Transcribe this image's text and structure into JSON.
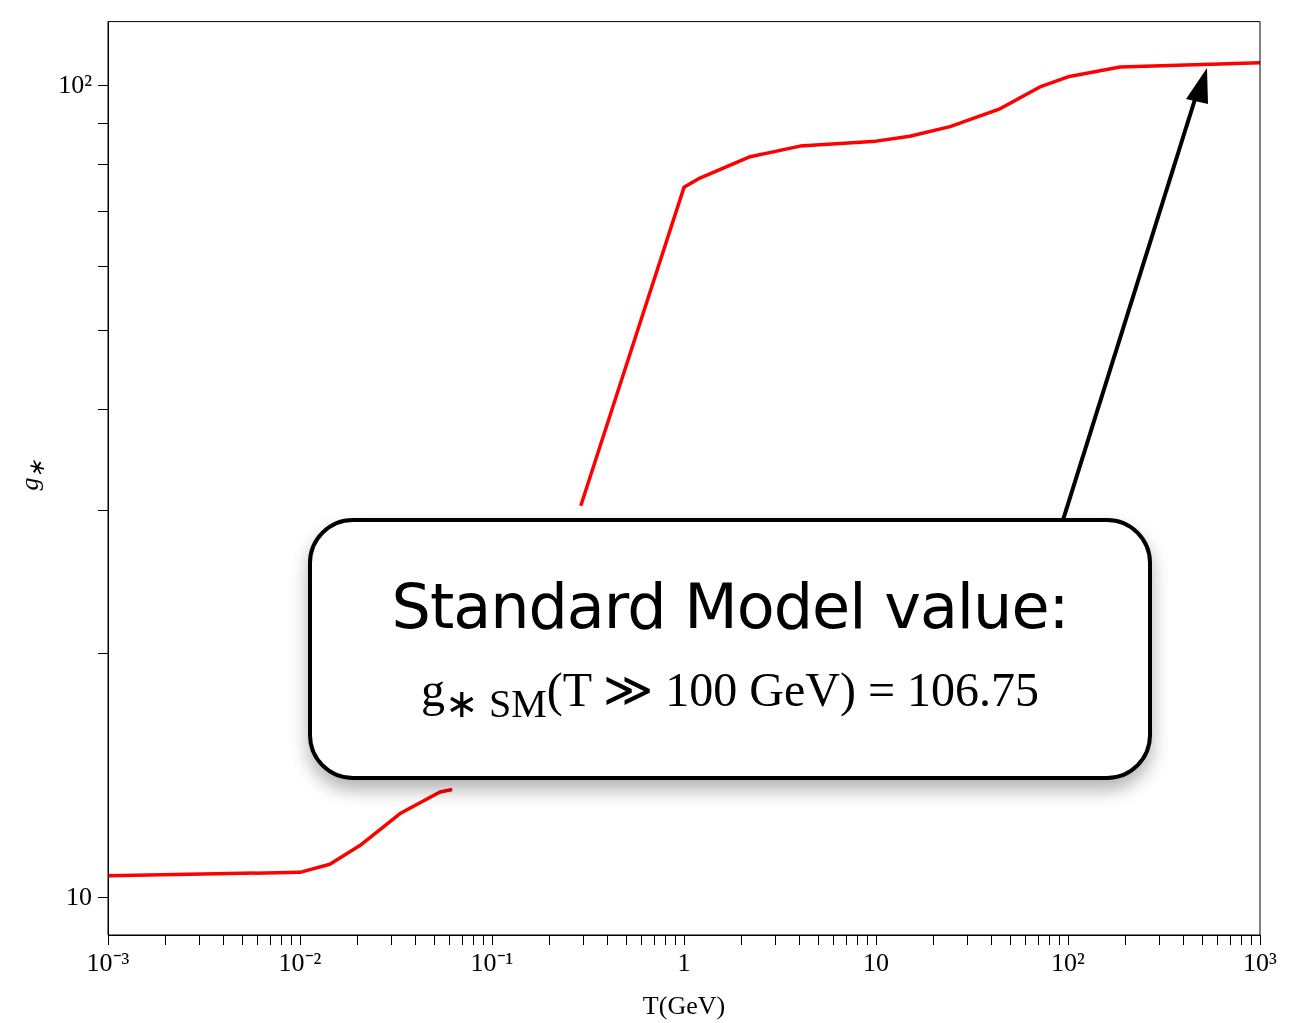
{
  "chart_data": {
    "type": "line",
    "xlabel": "T(GeV)",
    "ylabel": "g$_{∗}$",
    "log": "xy",
    "grid": false,
    "legend": false,
    "marker": "none",
    "line_style": "solid",
    "xlim": [
      0.001,
      1000
    ],
    "ylim": [
      9,
      120
    ],
    "xticks": [
      {
        "value": 0.001,
        "label": "10⁻³"
      },
      {
        "value": 0.002,
        "label": null
      },
      {
        "value": 0.003,
        "label": null
      },
      {
        "value": 0.004,
        "label": null
      },
      {
        "value": 0.005,
        "label": null
      },
      {
        "value": 0.006,
        "label": null
      },
      {
        "value": 0.007,
        "label": null
      },
      {
        "value": 0.008,
        "label": null
      },
      {
        "value": 0.009,
        "label": null
      },
      {
        "value": 0.01,
        "label": "10⁻²"
      },
      {
        "value": 0.02,
        "label": null
      },
      {
        "value": 0.03,
        "label": null
      },
      {
        "value": 0.04,
        "label": null
      },
      {
        "value": 0.05,
        "label": null
      },
      {
        "value": 0.06,
        "label": null
      },
      {
        "value": 0.07,
        "label": null
      },
      {
        "value": 0.08,
        "label": null
      },
      {
        "value": 0.09,
        "label": null
      },
      {
        "value": 0.1,
        "label": "10⁻¹"
      },
      {
        "value": 0.2,
        "label": null
      },
      {
        "value": 0.3,
        "label": null
      },
      {
        "value": 0.4,
        "label": null
      },
      {
        "value": 0.5,
        "label": null
      },
      {
        "value": 0.6,
        "label": null
      },
      {
        "value": 0.7,
        "label": null
      },
      {
        "value": 0.8,
        "label": null
      },
      {
        "value": 0.9,
        "label": null
      },
      1,
      {
        "value": 2,
        "label": null
      },
      {
        "value": 3,
        "label": null
      },
      {
        "value": 4,
        "label": null
      },
      {
        "value": 5,
        "label": null
      },
      {
        "value": 6,
        "label": null
      },
      {
        "value": 7,
        "label": null
      },
      {
        "value": 8,
        "label": null
      },
      {
        "value": 9,
        "label": null
      },
      10,
      {
        "value": 20,
        "label": null
      },
      {
        "value": 30,
        "label": null
      },
      {
        "value": 40,
        "label": null
      },
      {
        "value": 50,
        "label": null
      },
      {
        "value": 60,
        "label": null
      },
      {
        "value": 70,
        "label": null
      },
      {
        "value": 80,
        "label": null
      },
      {
        "value": 90,
        "label": null
      },
      {
        "value": 100,
        "label": "10²"
      },
      {
        "value": 200,
        "label": null
      },
      {
        "value": 300,
        "label": null
      },
      {
        "value": 400,
        "label": null
      },
      {
        "value": 500,
        "label": null
      },
      {
        "value": 600,
        "label": null
      },
      {
        "value": 700,
        "label": null
      },
      {
        "value": 800,
        "label": null
      },
      {
        "value": 900,
        "label": null
      },
      {
        "value": 1000,
        "label": "10³"
      }
    ],
    "yticks": [
      10,
      {
        "value": 20,
        "label": null
      },
      {
        "value": 30,
        "label": null
      },
      {
        "value": 40,
        "label": null
      },
      {
        "value": 50,
        "label": null
      },
      {
        "value": 60,
        "label": null
      },
      {
        "value": 70,
        "label": null
      },
      {
        "value": 80,
        "label": null
      },
      {
        "value": 90,
        "label": null
      },
      {
        "value": 100,
        "label": "10²"
      }
    ],
    "series": [
      {
        "color": "#ff0000",
        "x": [
          0.001,
          0.01,
          0.0143,
          0.0205,
          0.0332,
          0.0536,
          0.062,
          0.15,
          0.29,
          1,
          1.21,
          2.21,
          4.02,
          10,
          15,
          24.3,
          44.2,
          71.4,
          100,
          187,
          1000
        ],
        "values": [
          10.65,
          10.75,
          11.0,
          11.6,
          12.7,
          13.5,
          13.6,
          null,
          30.4,
          75,
          77,
          81.8,
          84.3,
          85.5,
          86.7,
          89.1,
          93.7,
          99.7,
          102.6,
          105.5,
          106.75
        ]
      }
    ],
    "annotations": [
      "Standard Model value:",
      "g$_{∗ SM}$(T ≫ 100 GeV) = 106.75"
    ]
  }
}
